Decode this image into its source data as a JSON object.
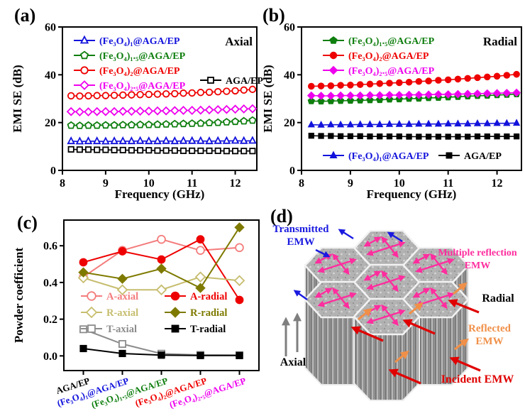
{
  "panels": {
    "a": {
      "label": "(a)",
      "annotation": "Axial"
    },
    "b": {
      "label": "(b)",
      "annotation": "Radial"
    },
    "c": {
      "label": "(c)"
    },
    "d": {
      "label": "(d)"
    }
  },
  "chart_data": [
    {
      "id": "a",
      "type": "line",
      "panel_label": "(a)",
      "annotation": "Axial",
      "xlabel": "Frequency (GHz)",
      "ylabel": "EMI SE (dB)",
      "xlim": [
        8,
        12.5
      ],
      "ylim": [
        0,
        60
      ],
      "xticks": [
        8,
        9,
        10,
        11,
        12
      ],
      "xtick_labels": [
        "8",
        "9",
        "10",
        "11",
        "12"
      ],
      "yticks": [
        0,
        20,
        40,
        60
      ],
      "ytick_labels": [
        "0",
        "20",
        "40",
        "60"
      ],
      "x_start": 8.2,
      "x_step": 0.2,
      "grid": false,
      "legend_position": "inside top-left; AGA/EP entry inside right",
      "series": [
        {
          "name": "(Fe₃O₄)₁@AGA/EP",
          "color": "#1212DC",
          "marker": "triangle",
          "fill": "open",
          "values": [
            12.2,
            12.1,
            12.2,
            12.2,
            12.1,
            12.2,
            12.2,
            12.2,
            12.3,
            12.2,
            12.2,
            12.3,
            12.2,
            12.3,
            12.3,
            12.3,
            12.2,
            12.3,
            12.3,
            12.4,
            12.3,
            12.4
          ]
        },
        {
          "name": "(Fe₃O₄)₁.₅@AGA/EP",
          "color": "#0E7E0E",
          "marker": "pentagon",
          "fill": "open",
          "values": [
            18.8,
            18.7,
            18.8,
            18.8,
            18.9,
            18.9,
            19.0,
            19.0,
            19.1,
            19.1,
            19.2,
            19.3,
            19.4,
            19.5,
            19.6,
            19.7,
            19.9,
            20.0,
            20.2,
            20.4,
            20.6,
            20.9
          ]
        },
        {
          "name": "(Fe₃O₄)₂@AGA/EP",
          "color": "#EE0000",
          "marker": "circle",
          "fill": "open",
          "values": [
            31.2,
            31.1,
            31.2,
            31.3,
            31.3,
            31.4,
            31.5,
            31.6,
            31.7,
            31.8,
            31.9,
            32.0,
            32.1,
            32.3,
            32.4,
            32.6,
            32.7,
            32.9,
            33.1,
            33.3,
            33.6,
            33.9
          ]
        },
        {
          "name": "(Fe₃O₄)₂.₅@AGA/EP",
          "color": "#EE00EE",
          "marker": "diamond",
          "fill": "open",
          "values": [
            24.6,
            24.5,
            24.5,
            24.6,
            24.6,
            24.6,
            24.7,
            24.7,
            24.8,
            24.8,
            24.9,
            24.9,
            25.0,
            25.1,
            25.1,
            25.2,
            25.3,
            25.4,
            25.5,
            25.6,
            25.7,
            25.8
          ]
        },
        {
          "name": "AGA/EP",
          "color": "#000000",
          "marker": "square",
          "fill": "open",
          "values": [
            8.8,
            8.7,
            8.7,
            8.6,
            8.6,
            8.5,
            8.5,
            8.4,
            8.4,
            8.4,
            8.3,
            8.3,
            8.3,
            8.2,
            8.2,
            8.2,
            8.2,
            8.2,
            8.1,
            8.1,
            8.1,
            8.1
          ]
        }
      ]
    },
    {
      "id": "b",
      "type": "line",
      "panel_label": "(b)",
      "annotation": "Radial",
      "xlabel": "Frequency (GHz)",
      "ylabel": "EMI SE (dB)",
      "xlim": [
        8,
        12.5
      ],
      "ylim": [
        0,
        60
      ],
      "xticks": [
        8,
        9,
        10,
        11,
        12
      ],
      "xtick_labels": [
        "8",
        "9",
        "10",
        "11",
        "12"
      ],
      "yticks": [
        0,
        20,
        40,
        60
      ],
      "ytick_labels": [
        "0",
        "20",
        "40",
        "60"
      ],
      "x_start": 8.2,
      "x_step": 0.2,
      "grid": false,
      "legend_position": "three entries inside top-left; two entries inside bottom",
      "series": [
        {
          "name": "(Fe₃O₄)₁.₅@AGA/EP",
          "color": "#0E7E0E",
          "marker": "pentagon",
          "fill": "filled",
          "values": [
            29.0,
            28.9,
            29.0,
            29.1,
            29.2,
            29.3,
            29.4,
            29.5,
            29.7,
            29.8,
            30.0,
            30.1,
            30.3,
            30.4,
            30.6,
            30.8,
            31.0,
            31.2,
            31.3,
            31.5,
            31.7,
            31.9
          ]
        },
        {
          "name": "(Fe₃O₄)₂@AGA/EP",
          "color": "#EE0000",
          "marker": "circle",
          "fill": "filled",
          "values": [
            35.2,
            35.3,
            35.4,
            35.6,
            35.7,
            35.9,
            36.1,
            36.3,
            36.5,
            36.7,
            36.9,
            37.2,
            37.4,
            37.7,
            37.9,
            38.2,
            38.5,
            38.8,
            39.1,
            39.4,
            39.8,
            40.2
          ]
        },
        {
          "name": "(Fe₃O₄)₂.₅@AGA/EP",
          "color": "#EE00EE",
          "marker": "diamond",
          "fill": "filled",
          "values": [
            31.3,
            31.2,
            31.2,
            31.3,
            31.3,
            31.3,
            31.4,
            31.4,
            31.5,
            31.5,
            31.6,
            31.6,
            31.7,
            31.8,
            31.8,
            31.9,
            32.0,
            32.1,
            32.2,
            32.3,
            32.4,
            32.5
          ]
        },
        {
          "name": "(Fe₃O₄)₁@AGA/EP",
          "color": "#1212DC",
          "marker": "triangle",
          "fill": "filled",
          "values": [
            19.1,
            19.0,
            19.1,
            19.1,
            19.1,
            19.2,
            19.2,
            19.2,
            19.3,
            19.3,
            19.3,
            19.4,
            19.4,
            19.4,
            19.5,
            19.5,
            19.5,
            19.6,
            19.6,
            19.7,
            19.7,
            19.8
          ]
        },
        {
          "name": "AGA/EP",
          "color": "#000000",
          "marker": "square",
          "fill": "filled",
          "values": [
            14.5,
            14.4,
            14.4,
            14.3,
            14.3,
            14.3,
            14.2,
            14.2,
            14.2,
            14.2,
            14.1,
            14.1,
            14.1,
            14.1,
            14.1,
            14.1,
            14.1,
            14.2,
            14.2,
            14.2,
            14.2,
            14.2
          ]
        }
      ]
    },
    {
      "id": "c",
      "type": "line",
      "panel_label": "(c)",
      "xlabel": "",
      "ylabel": "Powder coefficient",
      "ylim": [
        -0.08,
        0.74
      ],
      "yticks": [
        0.0,
        0.2,
        0.4,
        0.6
      ],
      "ytick_labels": [
        "0.0",
        "0.2",
        "0.4",
        "0.6"
      ],
      "grid": false,
      "legend_position": "inside middle, two columns",
      "categories": [
        "AGA/EP",
        "(Fe₃O₄)₁@AGA/EP",
        "(Fe₃O₄)₁.₅@AGA/EP",
        "(Fe₃O₄)₂@AGA/EP",
        "(Fe₃O₄)₂.₅@AGA/EP"
      ],
      "category_colors": [
        "#000000",
        "#1212DC",
        "#0E7E0E",
        "#EE0000",
        "#EE00EE"
      ],
      "series": [
        {
          "name": "A-axial",
          "color": "#F47C7C",
          "marker": "circle",
          "fill": "open",
          "values": [
            0.43,
            0.575,
            0.635,
            0.575,
            0.59
          ]
        },
        {
          "name": "A-radial",
          "color": "#EE0000",
          "marker": "circle",
          "fill": "filled",
          "values": [
            0.51,
            0.57,
            0.525,
            0.635,
            0.305
          ]
        },
        {
          "name": "R-axial",
          "color": "#C6BD6E",
          "marker": "diamond",
          "fill": "open",
          "values": [
            0.425,
            0.36,
            0.36,
            0.43,
            0.41
          ]
        },
        {
          "name": "R-radial",
          "color": "#7E7A00",
          "marker": "diamond",
          "fill": "filled",
          "values": [
            0.455,
            0.42,
            0.475,
            0.37,
            0.7
          ]
        },
        {
          "name": "T-axial",
          "color": "#8C8C8C",
          "marker": "square",
          "fill": "open",
          "values": [
            0.145,
            0.065,
            0.012,
            0.005,
            0.004
          ]
        },
        {
          "name": "T-radial",
          "color": "#000000",
          "marker": "square",
          "fill": "filled",
          "values": [
            0.04,
            0.013,
            0.004,
            0.002,
            0.002
          ]
        }
      ]
    }
  ],
  "diagram": {
    "panel_label": "(d)",
    "labels": {
      "transmitted_l1": "Transmitted",
      "transmitted_l2": "EMW",
      "multiple_l1": "Multiple reflection",
      "multiple_l2": "EMW",
      "radial": "Radial",
      "reflected_l1": "Reflected",
      "reflected_l2": "EMW",
      "incident": "Incident EMW",
      "axial": "Axial"
    },
    "colors": {
      "transmitted": "#1A1AE0",
      "multiple_reflection": "#FF2D9E",
      "radial": "#000000",
      "reflected": "#F09048",
      "incident": "#E00000",
      "axial": "#000000",
      "axial_arrow": "#7F7F7F"
    }
  }
}
